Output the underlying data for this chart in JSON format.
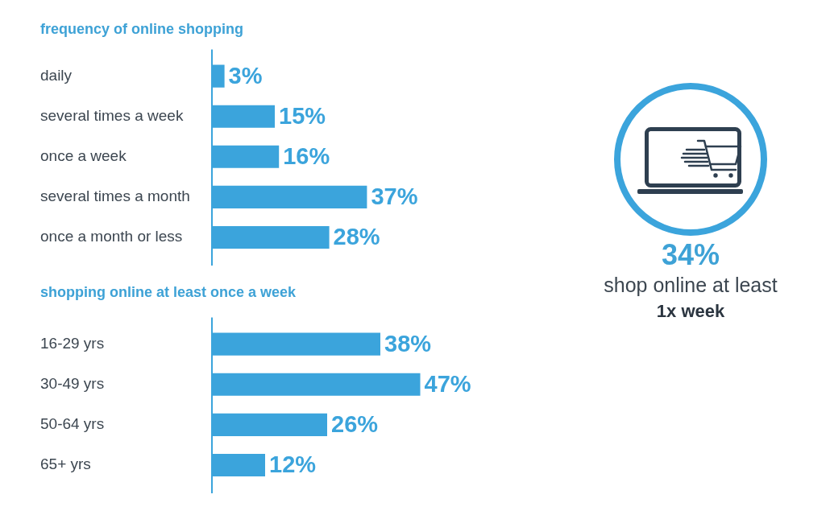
{
  "chart_data": [
    {
      "type": "bar",
      "orientation": "horizontal",
      "title": "frequency of online shopping",
      "categories": [
        "daily",
        "several times a week",
        "once a week",
        "several times a month",
        "once a month or less"
      ],
      "values": [
        3,
        15,
        16,
        37,
        28
      ],
      "value_labels": [
        "3%",
        "15%",
        "16%",
        "37%",
        "28%"
      ],
      "color": "#3ba4dc",
      "tick_labels": "y"
    },
    {
      "type": "bar",
      "orientation": "horizontal",
      "title": "shopping online at least once a week",
      "categories": [
        "16-29 yrs",
        "30-49 yrs",
        "50-64 yrs",
        "65+ yrs"
      ],
      "values": [
        38,
        47,
        26,
        12
      ],
      "value_labels": [
        "38%",
        "47%",
        "26%",
        "12%"
      ],
      "color": "#3ba4dc",
      "tick_labels": "y"
    },
    {
      "type": "other",
      "annotations": [
        "34%",
        "shop online at least",
        "1x week"
      ]
    }
  ]
}
